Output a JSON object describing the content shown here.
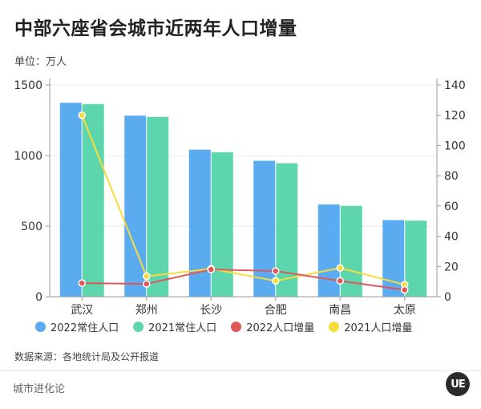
{
  "title": "中部六座省会城市近两年人口增量",
  "unit_label": "单位：万人",
  "source": "数据来源：各地统计局及公开报道",
  "footer_brand": "城市进化论",
  "logo_text": "UE",
  "colors": {
    "pop2022": "#5aabf0",
    "pop2021": "#5ed6ad",
    "inc2022": "#e0575a",
    "inc2021": "#f7dc3c",
    "grid": "#e8e8e8",
    "axis": "#999999"
  },
  "chart_data": {
    "type": "bar",
    "categories": [
      "武汉",
      "郑州",
      "长沙",
      "合肥",
      "南昌",
      "太原"
    ],
    "series": [
      {
        "name": "2022常住人口",
        "type": "bar",
        "axis": "left",
        "values": [
          1374,
          1283,
          1042,
          963,
          654,
          543
        ]
      },
      {
        "name": "2021常住人口",
        "type": "bar",
        "axis": "left",
        "values": [
          1365,
          1274,
          1024,
          946,
          644,
          539
        ]
      },
      {
        "name": "2022人口增量",
        "type": "line",
        "axis": "right",
        "values": [
          9,
          8.5,
          18,
          17,
          10.5,
          4.5
        ]
      },
      {
        "name": "2021人口增量",
        "type": "line",
        "axis": "right",
        "values": [
          120,
          13.5,
          18.5,
          10.5,
          19,
          8
        ]
      }
    ],
    "left_axis": {
      "min": 0,
      "max": 1500,
      "ticks": [
        0,
        500,
        1000,
        1500
      ]
    },
    "right_axis": {
      "min": 0,
      "max": 140,
      "ticks": [
        0,
        20,
        40,
        60,
        80,
        100,
        120,
        140
      ]
    },
    "grid": true,
    "legend_position": "bottom"
  }
}
